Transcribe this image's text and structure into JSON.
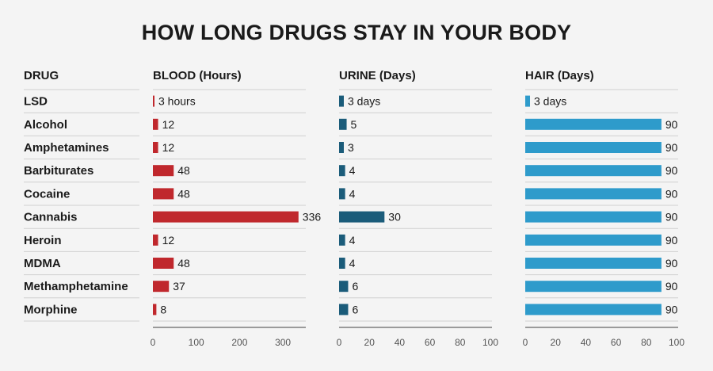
{
  "title": "HOW LONG DRUGS STAY IN YOUR BODY",
  "headers": {
    "drug": "DRUG",
    "blood": "BLOOD (Hours)",
    "urine": "URINE (Days)",
    "hair": "HAIR (Days)"
  },
  "colors": {
    "blood": "#c0282d",
    "urine": "#1b5c7a",
    "hair": "#2e9bcb",
    "background": "#f4f4f4",
    "divider": "#cfcfcf"
  },
  "chart_data": {
    "type": "bar",
    "categories": [
      "LSD",
      "Alcohol",
      "Amphetamines",
      "Barbiturates",
      "Cocaine",
      "Cannabis",
      "Heroin",
      "MDMA",
      "Methamphetamine",
      "Morphine"
    ],
    "series": [
      {
        "name": "BLOOD (Hours)",
        "values": [
          3,
          12,
          12,
          48,
          48,
          336,
          12,
          48,
          37,
          8
        ],
        "labels": [
          "3 hours",
          "12",
          "12",
          "48",
          "48",
          "336",
          "12",
          "48",
          "37",
          "8"
        ],
        "xlim": [
          0,
          350
        ],
        "ticks": [
          0,
          100,
          200,
          300
        ]
      },
      {
        "name": "URINE (Days)",
        "values": [
          3,
          5,
          3,
          4,
          4,
          30,
          4,
          4,
          6,
          6
        ],
        "labels": [
          "3 days",
          "5",
          "3",
          "4",
          "4",
          "30",
          "4",
          "4",
          "6",
          "6"
        ],
        "xlim": [
          0,
          100
        ],
        "ticks": [
          0,
          20,
          40,
          60,
          80,
          100
        ]
      },
      {
        "name": "HAIR (Days)",
        "values": [
          3,
          90,
          90,
          90,
          90,
          90,
          90,
          90,
          90,
          90
        ],
        "labels": [
          "3 days",
          "90",
          "90",
          "90",
          "90",
          "90",
          "90",
          "90",
          "90",
          "90"
        ],
        "xlim": [
          0,
          100
        ],
        "ticks": [
          0,
          20,
          40,
          60,
          80,
          100
        ]
      }
    ],
    "grid": false,
    "legend": "none"
  }
}
